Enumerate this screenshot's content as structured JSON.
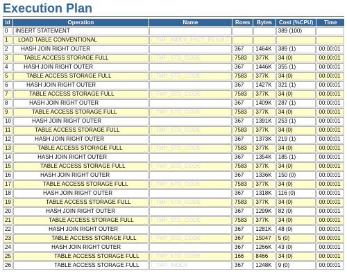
{
  "title": "Execution Plan",
  "columns": [
    "Id",
    "Operation",
    "Name",
    "Rows",
    "Bytes",
    "Cost (%CPU)",
    "Time"
  ],
  "rows": [
    {
      "id": "0",
      "op": "INSERT STATEMENT",
      "name": "",
      "rows": "",
      "bytes": "",
      "cost": "389 (100)",
      "time": ""
    },
    {
      "id": "1",
      "op": "LOAD TABLE CONVENTIONAL",
      "name": "I_TMP_INDEX_FACT_RESULT",
      "rows": "",
      "bytes": "",
      "cost": "",
      "time": ""
    },
    {
      "id": "2",
      "op": "HASH JOIN RIGHT OUTER",
      "name": "",
      "rows": "367",
      "bytes": "1464K",
      "cost": "389 (1)",
      "time": "00:00:01"
    },
    {
      "id": "3",
      "op": "TABLE ACCESS STORAGE FULL",
      "name": "I_TMP_STD_CODE",
      "rows": "7583",
      "bytes": "377K",
      "cost": "34 (0)",
      "time": "00:00:01"
    },
    {
      "id": "4",
      "op": "HASH JOIN RIGHT OUTER",
      "name": "",
      "rows": "367",
      "bytes": "1446K",
      "cost": "355 (1)",
      "time": "00:00:01"
    },
    {
      "id": "5",
      "op": "TABLE ACCESS STORAGE FULL",
      "name": "I_TMP_STD_CODE",
      "rows": "7583",
      "bytes": "377K",
      "cost": "34 (0)",
      "time": "00:00:01"
    },
    {
      "id": "6",
      "op": "HASH JOIN RIGHT OUTER",
      "name": "",
      "rows": "367",
      "bytes": "1427K",
      "cost": "321 (1)",
      "time": "00:00:01"
    },
    {
      "id": "7",
      "op": "TABLE ACCESS STORAGE FULL",
      "name": "I_TMP_STD_CODE",
      "rows": "7583",
      "bytes": "377K",
      "cost": "34 (0)",
      "time": "00:00:01"
    },
    {
      "id": "8",
      "op": "HASH JOIN RIGHT OUTER",
      "name": "",
      "rows": "367",
      "bytes": "1409K",
      "cost": "287 (1)",
      "time": "00:00:01"
    },
    {
      "id": "9",
      "op": "TABLE ACCESS STORAGE FULL",
      "name": "I_TMP_STD_CODE",
      "rows": "7583",
      "bytes": "377K",
      "cost": "34 (0)",
      "time": "00:00:01"
    },
    {
      "id": "10",
      "op": "HASH JOIN RIGHT OUTER",
      "name": "",
      "rows": "367",
      "bytes": "1391K",
      "cost": "253 (1)",
      "time": "00:00:01"
    },
    {
      "id": "11",
      "op": "TABLE ACCESS STORAGE FULL",
      "name": "I_TMP_STD_CODE",
      "rows": "7583",
      "bytes": "377K",
      "cost": "34 (0)",
      "time": "00:00:01"
    },
    {
      "id": "12",
      "op": "HASH JOIN RIGHT OUTER",
      "name": "",
      "rows": "367",
      "bytes": "1373K",
      "cost": "219 (1)",
      "time": "00:00:01"
    },
    {
      "id": "13",
      "op": "TABLE ACCESS STORAGE FULL",
      "name": "I_TMP_STD_CODE",
      "rows": "7583",
      "bytes": "377K",
      "cost": "34 (0)",
      "time": "00:00:01"
    },
    {
      "id": "14",
      "op": "HASH JOIN RIGHT OUTER",
      "name": "",
      "rows": "367",
      "bytes": "1354K",
      "cost": "185 (1)",
      "time": "00:00:01"
    },
    {
      "id": "15",
      "op": "TABLE ACCESS STORAGE FULL",
      "name": "I_TMP_STD_CODE",
      "rows": "7583",
      "bytes": "377K",
      "cost": "34 (0)",
      "time": "00:00:01"
    },
    {
      "id": "16",
      "op": "HASH JOIN RIGHT OUTER",
      "name": "",
      "rows": "367",
      "bytes": "1336K",
      "cost": "150 (0)",
      "time": "00:00:01"
    },
    {
      "id": "17",
      "op": "TABLE ACCESS STORAGE FULL",
      "name": "I_TMP_STD_CODE",
      "rows": "7583",
      "bytes": "377K",
      "cost": "34 (0)",
      "time": "00:00:01"
    },
    {
      "id": "18",
      "op": "HASH JOIN RIGHT OUTER",
      "name": "",
      "rows": "367",
      "bytes": "1318K",
      "cost": "116 (0)",
      "time": "00:00:01"
    },
    {
      "id": "19",
      "op": "TABLE ACCESS STORAGE FULL",
      "name": "I_TMP_STD_CODE",
      "rows": "7583",
      "bytes": "377K",
      "cost": "34 (0)",
      "time": "00:00:01"
    },
    {
      "id": "20",
      "op": "HASH JOIN RIGHT OUTER",
      "name": "",
      "rows": "367",
      "bytes": "1299K",
      "cost": "82 (0)",
      "time": "00:00:01"
    },
    {
      "id": "21",
      "op": "TABLE ACCESS STORAGE FULL",
      "name": "I_TMP_STD_CODE",
      "rows": "7583",
      "bytes": "377K",
      "cost": "34 (0)",
      "time": "00:00:01"
    },
    {
      "id": "22",
      "op": "HASH JOIN RIGHT OUTER",
      "name": "",
      "rows": "367",
      "bytes": "1281K",
      "cost": "48 (0)",
      "time": "00:00:01"
    },
    {
      "id": "23",
      "op": "TABLE ACCESS STORAGE FULL",
      "name": "I_TMP_STD_CODE",
      "rows": "367",
      "bytes": "15047",
      "cost": "5 (0)",
      "time": "00:00:01"
    },
    {
      "id": "24",
      "op": "HASH JOIN RIGHT OUTER",
      "name": "",
      "rows": "367",
      "bytes": "1266K",
      "cost": "43 (0)",
      "time": "00:00:01"
    },
    {
      "id": "25",
      "op": "TABLE ACCESS STORAGE FULL",
      "name": "I_TMP_STD_CODE",
      "rows": "166",
      "bytes": "8466",
      "cost": "34 (0)",
      "time": "00:00:01"
    },
    {
      "id": "26",
      "op": "TABLE ACCESS STORAGE FULL",
      "name": "I_TMP_INDEX",
      "rows": "367",
      "bytes": "1248K",
      "cost": "9 (0)",
      "time": "00:00:01"
    }
  ],
  "indent": [
    0,
    1,
    2,
    3,
    3,
    4,
    4,
    5,
    5,
    6,
    6,
    7,
    7,
    8,
    8,
    9,
    9,
    10,
    10,
    11,
    11,
    12,
    12,
    13,
    13,
    14,
    14
  ]
}
